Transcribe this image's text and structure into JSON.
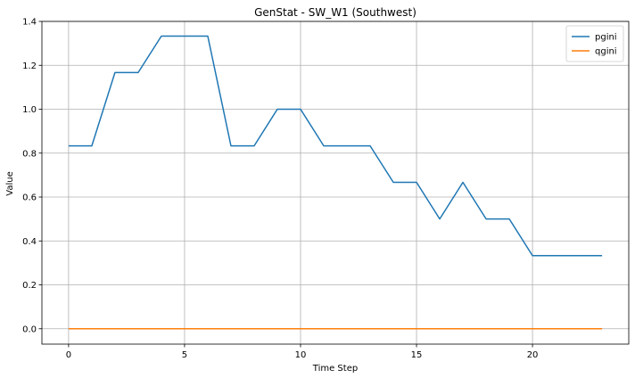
{
  "chart_data": {
    "type": "line",
    "title": "GenStat - SW_W1 (Southwest)",
    "xlabel": "Time Step",
    "ylabel": "Value",
    "xlim": [
      -1.15,
      24.15
    ],
    "ylim": [
      -0.07,
      1.4
    ],
    "xticks": [
      0,
      5,
      10,
      15,
      20
    ],
    "yticks": [
      0.0,
      0.2,
      0.4,
      0.6,
      0.8,
      1.0,
      1.2,
      1.4
    ],
    "ytick_labels": [
      "0.0",
      "0.2",
      "0.4",
      "0.6",
      "0.8",
      "1.0",
      "1.2",
      "1.4"
    ],
    "grid": true,
    "legend_position": "top-right",
    "x": [
      0,
      1,
      2,
      3,
      4,
      5,
      6,
      7,
      8,
      9,
      10,
      11,
      12,
      13,
      14,
      15,
      16,
      17,
      18,
      19,
      20,
      21,
      22,
      23
    ],
    "series": [
      {
        "name": "pgini",
        "color": "#1f77b4",
        "values": [
          0.833,
          0.833,
          1.167,
          1.167,
          1.333,
          1.333,
          1.333,
          0.833,
          0.833,
          1.0,
          1.0,
          0.833,
          0.833,
          0.833,
          0.667,
          0.667,
          0.5,
          0.667,
          0.5,
          0.5,
          0.333,
          0.333,
          0.333,
          0.333
        ]
      },
      {
        "name": "qgini",
        "color": "#ff7f0e",
        "values": [
          0,
          0,
          0,
          0,
          0,
          0,
          0,
          0,
          0,
          0,
          0,
          0,
          0,
          0,
          0,
          0,
          0,
          0,
          0,
          0,
          0,
          0,
          0,
          0
        ]
      }
    ]
  }
}
